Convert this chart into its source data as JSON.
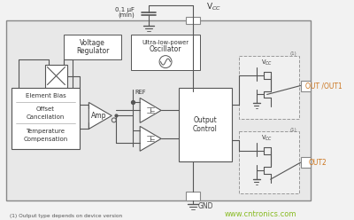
{
  "bg_color": "#f0f0f0",
  "white": "#ffffff",
  "outer_fc": "#e8e8e8",
  "dark_line": "#555555",
  "orange_text": "#cc7722",
  "dashed_box_color": "#999999",
  "title_note": "(1) Output type depends on device version",
  "watermark": "www.cntronics.com",
  "vcc_label": "V$_{CC}$",
  "gnd_label": "GND",
  "cap_label1": "0.1 μF",
  "cap_label2": "(min)",
  "vr_label1": "Voltage",
  "vr_label2": "Regulator",
  "osc_label1": "Ultra-low-power",
  "osc_label2": "Oscillator",
  "eb_label1": "Element Bias",
  "eb_label2": "Offset",
  "eb_label3": "Cancellation",
  "eb_label4": "Temperature",
  "eb_label5": "Compensation",
  "amp_label": "Amp",
  "ref_label": "REF",
  "oc_label1": "Output",
  "oc_label2": "Control",
  "out1_label": "OUT /OUT1",
  "out2_label": "OUT2",
  "footnote1": "(1)"
}
